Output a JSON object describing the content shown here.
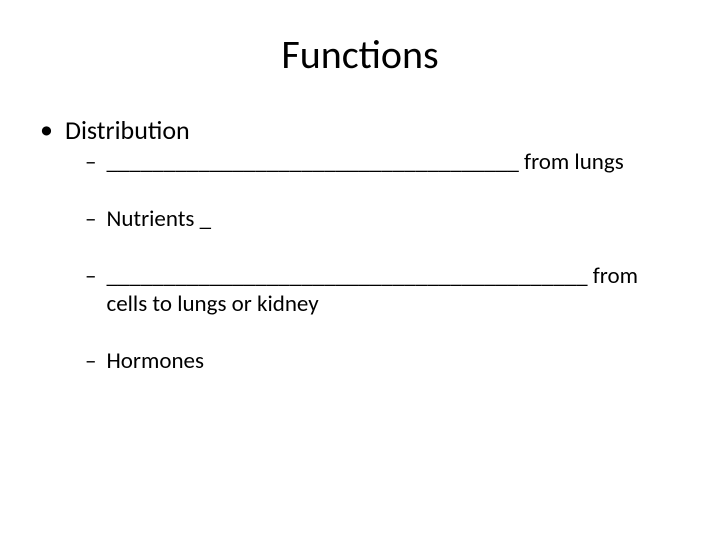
{
  "title": "Functions",
  "bullet_l1": {
    "text": "Distribution"
  },
  "items": [
    {
      "text": "____________________________________ from lungs"
    },
    {
      "text": "Nutrients _"
    },
    {
      "text": "__________________________________________ from cells to lungs or kidney"
    },
    {
      "text": "Hormones"
    }
  ],
  "colors": {
    "background": "#ffffff",
    "text": "#000000"
  },
  "fonts": {
    "title_size": 40,
    "l1_size": 26,
    "l2_size": 23
  }
}
